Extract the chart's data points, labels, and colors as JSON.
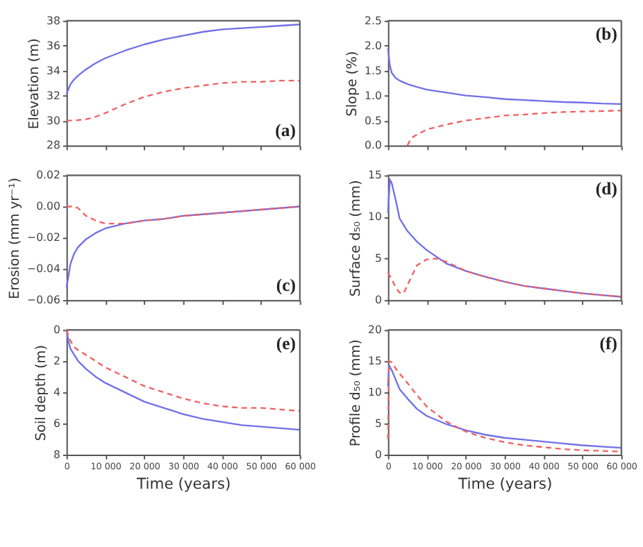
{
  "chart_data": [
    {
      "type": "line",
      "ylabel": "Elevation (m)",
      "annotations": [
        "(a)"
      ],
      "x": [
        0,
        1000,
        2000,
        3000,
        5000,
        7500,
        10000,
        15000,
        20000,
        25000,
        30000,
        35000,
        40000,
        45000,
        50000,
        55000,
        60000
      ],
      "xlim": [
        0,
        60000
      ],
      "xticks": [
        0,
        10000,
        20000,
        30000,
        40000,
        50000,
        60000
      ],
      "ylim": [
        28,
        38
      ],
      "yticks": [
        28,
        30,
        32,
        34,
        36,
        38
      ],
      "tick_labels": "y",
      "grid": false,
      "series": [
        {
          "color": "#7070e8",
          "line_style": "solid",
          "values": [
            32.1,
            32.9,
            33.3,
            33.6,
            34.1,
            34.6,
            35.0,
            35.6,
            36.1,
            36.5,
            36.8,
            37.1,
            37.3,
            37.4,
            37.5,
            37.6,
            37.7
          ]
        },
        {
          "color": "#f06060",
          "line_style": "dashed",
          "x": [
            0,
            2000,
            5000,
            7500,
            10000,
            15000,
            20000,
            25000,
            30000,
            35000,
            40000,
            45000,
            50000,
            55000,
            60000
          ],
          "values": [
            30.0,
            30.0,
            30.1,
            30.3,
            30.6,
            31.3,
            31.9,
            32.3,
            32.6,
            32.8,
            33.0,
            33.1,
            33.1,
            33.2,
            33.2
          ]
        }
      ]
    },
    {
      "type": "line",
      "ylabel": "Slope (%)",
      "annotations": [
        "(b)"
      ],
      "x": [
        0,
        500,
        1000,
        2000,
        3000,
        5000,
        7500,
        10000,
        15000,
        20000,
        25000,
        30000,
        35000,
        40000,
        45000,
        50000,
        55000,
        60000
      ],
      "xlim": [
        0,
        60000
      ],
      "xticks": [
        0,
        10000,
        20000,
        30000,
        40000,
        50000,
        60000
      ],
      "ylim": [
        0,
        2.5
      ],
      "yticks": [
        {
          "value": 0,
          "label": "0.0"
        },
        {
          "value": 0.5,
          "label": "0.5"
        },
        {
          "value": 1,
          "label": "1.0"
        },
        {
          "value": 1.5,
          "label": "1.5"
        },
        {
          "value": 2,
          "label": "2.0"
        },
        {
          "value": 2.5,
          "label": "2.5"
        }
      ],
      "tick_labels": "y",
      "grid": false,
      "series": [
        {
          "color": "#7070e8",
          "line_style": "solid",
          "values": [
            1.95,
            1.6,
            1.45,
            1.35,
            1.3,
            1.23,
            1.17,
            1.12,
            1.06,
            1.0,
            0.97,
            0.93,
            0.91,
            0.89,
            0.87,
            0.86,
            0.84,
            0.83
          ]
        },
        {
          "color": "#f06060",
          "line_style": "dashed",
          "x": [
            5000,
            6000,
            7500,
            10000,
            15000,
            20000,
            25000,
            30000,
            35000,
            40000,
            45000,
            50000,
            55000,
            60000
          ],
          "values": [
            0.0,
            0.15,
            0.22,
            0.32,
            0.42,
            0.5,
            0.55,
            0.6,
            0.62,
            0.65,
            0.67,
            0.68,
            0.69,
            0.7
          ]
        }
      ]
    },
    {
      "type": "line",
      "ylabel": "Erosion (mm yr⁻¹)",
      "annotations": [
        "(c)"
      ],
      "x": [
        0,
        500,
        1000,
        2000,
        3000,
        5000,
        7500,
        10000,
        15000,
        20000,
        25000,
        30000,
        35000,
        40000,
        45000,
        50000,
        55000,
        60000
      ],
      "xlim": [
        0,
        60000
      ],
      "xticks": [
        0,
        10000,
        20000,
        30000,
        40000,
        50000,
        60000
      ],
      "ylim": [
        -0.06,
        0.02
      ],
      "yticks": [
        {
          "value": -0.06,
          "label": "−0.06"
        },
        {
          "value": -0.04,
          "label": "−0.04"
        },
        {
          "value": -0.02,
          "label": "−0.02"
        },
        {
          "value": 0,
          "label": "0.00"
        },
        {
          "value": 0.02,
          "label": "0.02"
        }
      ],
      "tick_labels": "y",
      "grid": false,
      "series": [
        {
          "color": "#7070e8",
          "line_style": "solid",
          "values": [
            -0.052,
            -0.045,
            -0.037,
            -0.03,
            -0.026,
            -0.021,
            -0.017,
            -0.014,
            -0.011,
            -0.009,
            -0.008,
            -0.006,
            -0.005,
            -0.004,
            -0.003,
            -0.002,
            -0.001,
            0.0
          ]
        },
        {
          "color": "#f06060",
          "line_style": "dashed",
          "x": [
            0,
            2000,
            3000,
            5000,
            7500,
            10000,
            15000,
            20000,
            25000,
            30000,
            35000,
            40000,
            45000,
            50000,
            55000,
            60000
          ],
          "values": [
            0.0,
            0.0,
            -0.001,
            -0.006,
            -0.009,
            -0.011,
            -0.011,
            -0.009,
            -0.008,
            -0.006,
            -0.005,
            -0.004,
            -0.003,
            -0.002,
            -0.001,
            0.0
          ]
        }
      ]
    },
    {
      "type": "line",
      "ylabel": "Surface d₅₀ (mm)",
      "annotations": [
        "(d)"
      ],
      "x": [
        0,
        500,
        1000,
        2000,
        3000,
        5000,
        7500,
        10000,
        15000,
        20000,
        25000,
        30000,
        35000,
        40000,
        45000,
        50000,
        55000,
        60000
      ],
      "xlim": [
        0,
        60000
      ],
      "xticks": [
        0,
        10000,
        20000,
        30000,
        40000,
        50000,
        60000
      ],
      "ylim": [
        0,
        15
      ],
      "yticks": [
        0,
        5,
        10,
        15
      ],
      "tick_labels": "y",
      "grid": false,
      "series": [
        {
          "color": "#7070e8",
          "line_style": "solid",
          "values": [
            10.5,
            14.5,
            14,
            12,
            9.8,
            8.3,
            7.0,
            6.0,
            4.4,
            3.5,
            2.8,
            2.2,
            1.7,
            1.4,
            1.1,
            0.8,
            0.6,
            0.4
          ]
        },
        {
          "color": "#f06060",
          "line_style": "dashed",
          "x": [
            0,
            1000,
            2000,
            3000,
            4000,
            5000,
            7500,
            10000,
            12500,
            15000,
            20000,
            25000,
            30000,
            35000,
            40000,
            45000,
            50000,
            55000,
            60000
          ],
          "values": [
            3.3,
            2.5,
            1.5,
            0.9,
            0.8,
            1.8,
            4.2,
            4.9,
            5.0,
            4.6,
            3.5,
            2.8,
            2.2,
            1.7,
            1.4,
            1.1,
            0.8,
            0.6,
            0.4
          ]
        }
      ]
    },
    {
      "type": "line",
      "xlabel": "Time (years)",
      "ylabel": "Soil depth (m)",
      "annotations": [
        "(e)"
      ],
      "x": [
        0,
        500,
        1000,
        2000,
        3000,
        5000,
        7500,
        10000,
        15000,
        20000,
        25000,
        30000,
        35000,
        40000,
        45000,
        50000,
        55000,
        60000
      ],
      "xlim": [
        0,
        60000
      ],
      "xticks": [
        0,
        {
          "value": 10000,
          "label": "10 000"
        },
        {
          "value": 20000,
          "label": "20 000"
        },
        {
          "value": 30000,
          "label": "30 000"
        },
        {
          "value": 40000,
          "label": "40 000"
        },
        {
          "value": 50000,
          "label": "50 000"
        },
        {
          "value": 60000,
          "label": "60 000"
        }
      ],
      "ylim": [
        8,
        0
      ],
      "yticks": [
        0,
        2,
        4,
        6,
        8
      ],
      "grid": false,
      "series": [
        {
          "color": "#7070e8",
          "line_style": "solid",
          "values": [
            0,
            0.7,
            1.2,
            1.6,
            2.0,
            2.5,
            3.0,
            3.4,
            4.0,
            4.6,
            5.0,
            5.4,
            5.7,
            5.9,
            6.1,
            6.2,
            6.3,
            6.4
          ]
        },
        {
          "color": "#f06060",
          "line_style": "dashed",
          "x": [
            0,
            1000,
            2000,
            3000,
            5000,
            7500,
            10000,
            15000,
            20000,
            25000,
            30000,
            35000,
            40000,
            45000,
            50000,
            55000,
            60000
          ],
          "values": [
            0,
            0.7,
            1.1,
            1.3,
            1.6,
            2.0,
            2.4,
            3.0,
            3.6,
            4.0,
            4.4,
            4.7,
            4.9,
            5.0,
            5.0,
            5.1,
            5.2
          ]
        }
      ]
    },
    {
      "type": "line",
      "xlabel": "Time (years)",
      "ylabel": "Profile d₅₀ (mm)",
      "annotations": [
        "(f)"
      ],
      "x": [
        0,
        300,
        1000,
        2000,
        3000,
        5000,
        7500,
        10000,
        15000,
        20000,
        25000,
        30000,
        35000,
        40000,
        45000,
        50000,
        55000,
        60000
      ],
      "xlim": [
        0,
        60000
      ],
      "xticks": [
        0,
        {
          "value": 10000,
          "label": "10 000"
        },
        {
          "value": 20000,
          "label": "20 000"
        },
        {
          "value": 30000,
          "label": "30 000"
        },
        {
          "value": 40000,
          "label": "40 000"
        },
        {
          "value": 50000,
          "label": "50 000"
        },
        {
          "value": 60000,
          "label": "60 000"
        }
      ],
      "ylim": [
        0,
        20
      ],
      "yticks": [
        0,
        5,
        10,
        15,
        20
      ],
      "grid": false,
      "series": [
        {
          "color": "#7070e8",
          "line_style": "solid",
          "values": [
            11,
            14.3,
            13.5,
            12,
            10.5,
            9.0,
            7.3,
            6.2,
            4.9,
            3.9,
            3.2,
            2.7,
            2.4,
            2.1,
            1.8,
            1.5,
            1.3,
            1.1
          ]
        },
        {
          "color": "#f06060",
          "line_style": "dashed",
          "values": [
            2.5,
            15,
            14.8,
            13.8,
            13,
            11.5,
            9.5,
            7.7,
            5.3,
            3.7,
            2.7,
            2.0,
            1.5,
            1.2,
            0.9,
            0.7,
            0.6,
            0.5
          ]
        }
      ]
    }
  ]
}
